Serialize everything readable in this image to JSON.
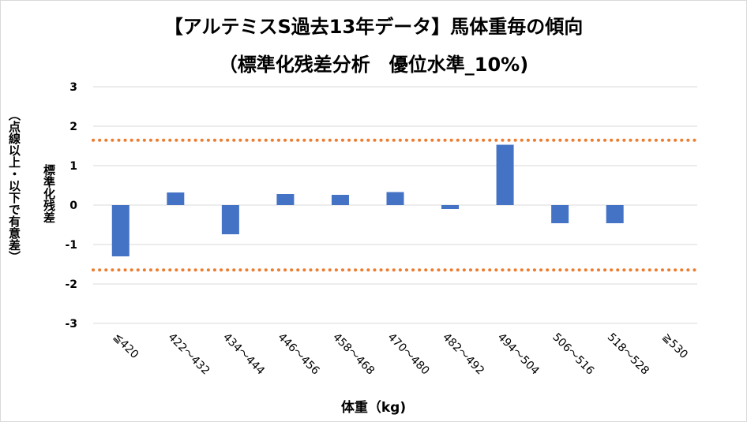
{
  "chart_data": {
    "type": "bar",
    "title": "【アルテミスS過去13年データ】馬体重毎の傾向",
    "subtitle": "（標準化残差分析　優位水準_10%)",
    "ylabel_main": "標準化残差",
    "ylabel_note": "（点線以上・以下で有意差）",
    "xlabel": "体重（kg)",
    "categories": [
      "≦420",
      "422～432",
      "434～444",
      "446～456",
      "458～468",
      "470～480",
      "482～492",
      "494～504",
      "506～516",
      "518～528",
      "≧530"
    ],
    "values": [
      -1.3,
      0.32,
      -0.74,
      0.28,
      0.26,
      0.33,
      -0.1,
      1.53,
      -0.46,
      -0.46,
      0
    ],
    "ylim": [
      -3,
      3
    ],
    "yticks": [
      3,
      2,
      1,
      0,
      -1,
      -2,
      -3
    ],
    "thresholds": [
      1.645,
      -1.645
    ],
    "bar_color": "#4472c4",
    "threshold_color": "#ed7d31",
    "grid_color": "#d9d9d9",
    "grid": true
  }
}
